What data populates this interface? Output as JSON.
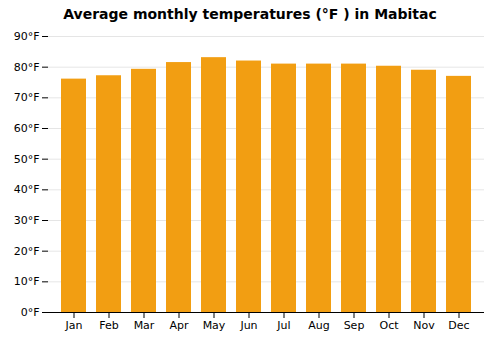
{
  "chart_data": {
    "type": "bar",
    "title": "Average monthly temperatures (°F ) in Mabitac",
    "categories": [
      "Jan",
      "Feb",
      "Mar",
      "Apr",
      "May",
      "Jun",
      "Jul",
      "Aug",
      "Sep",
      "Oct",
      "Nov",
      "Dec"
    ],
    "values": [
      76.1,
      77.2,
      79.3,
      81.5,
      83.1,
      82.0,
      81.0,
      81.0,
      81.0,
      80.3,
      79.0,
      77.0
    ],
    "color": "#f29e12",
    "ylim": [
      0,
      90
    ],
    "yticks": [
      {
        "value": 0,
        "label": "0°F"
      },
      {
        "value": 10,
        "label": "10°F"
      },
      {
        "value": 20,
        "label": "20°F"
      },
      {
        "value": 30,
        "label": "30°F"
      },
      {
        "value": 40,
        "label": "40°F"
      },
      {
        "value": 50,
        "label": "50°F"
      },
      {
        "value": 60,
        "label": "60°F"
      },
      {
        "value": 70,
        "label": "70°F"
      },
      {
        "value": 80,
        "label": "80°F"
      },
      {
        "value": 90,
        "label": "90°F"
      }
    ],
    "grid": true
  }
}
